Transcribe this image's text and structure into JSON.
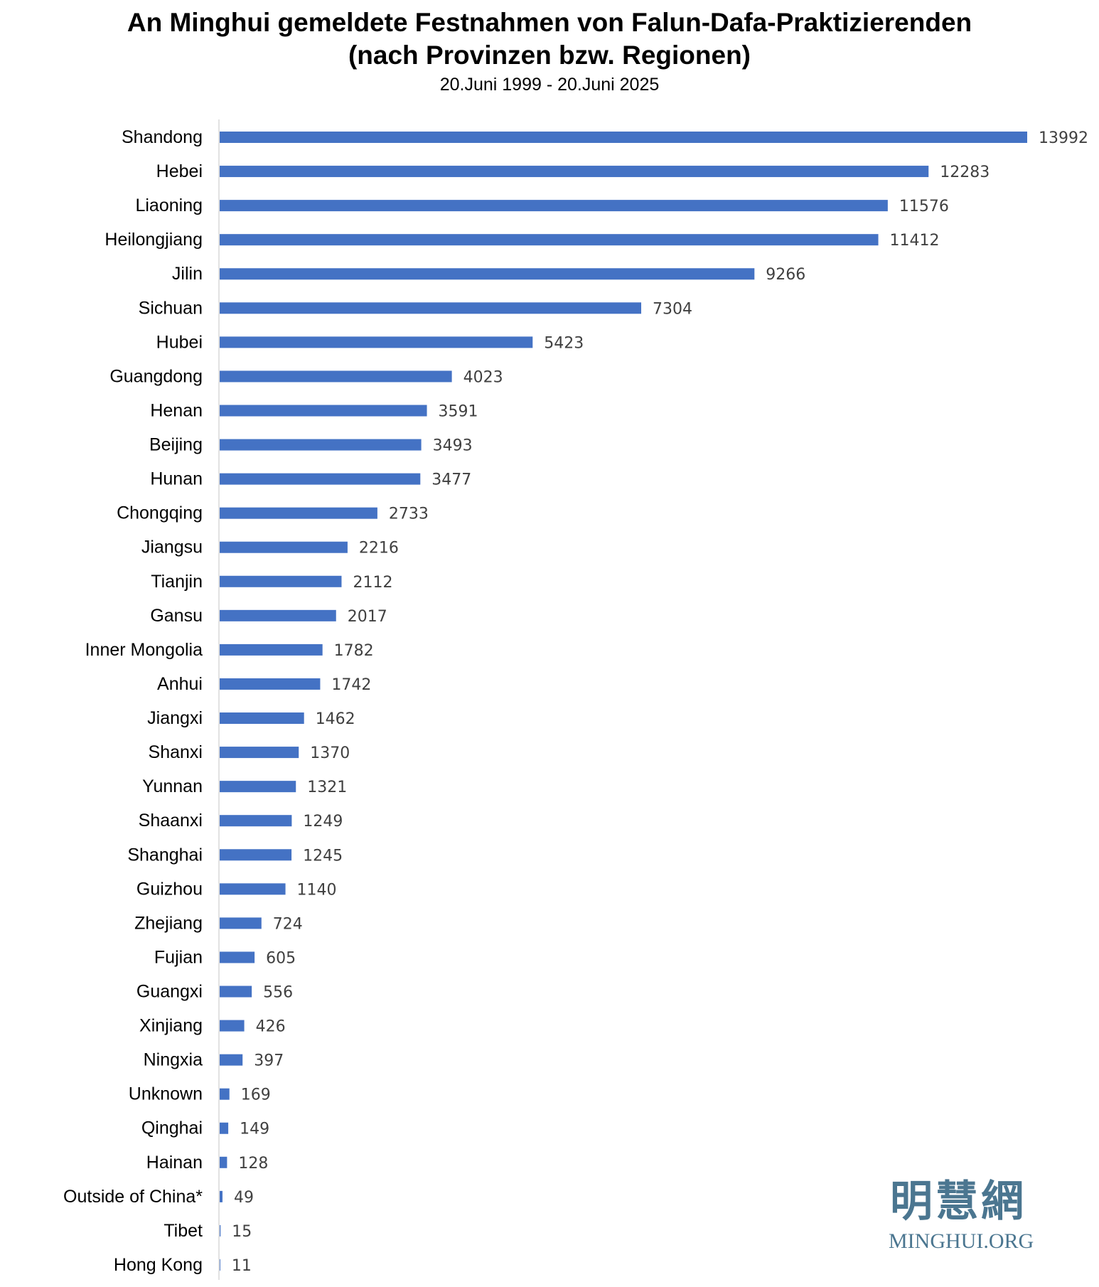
{
  "chart_data": {
    "type": "bar",
    "orientation": "horizontal",
    "title": "An Minghui gemeldete Festnahmen von Falun-Dafa-Praktizierenden",
    "title_line2": "(nach Provinzen bzw. Regionen)",
    "subtitle": "20.Juni 1999 - 20.Juni 2025",
    "categories": [
      "Shandong",
      "Hebei",
      "Liaoning",
      "Heilongjiang",
      "Jilin",
      "Sichuan",
      "Hubei",
      "Guangdong",
      "Henan",
      "Beijing",
      "Hunan",
      "Chongqing",
      "Jiangsu",
      "Tianjin",
      "Gansu",
      "Inner Mongolia",
      "Anhui",
      "Jiangxi",
      "Shanxi",
      "Yunnan",
      "Shaanxi",
      "Shanghai",
      "Guizhou",
      "Zhejiang",
      "Fujian",
      "Guangxi",
      "Xinjiang",
      "Ningxia",
      "Unknown",
      "Qinghai",
      "Hainan",
      "Outside of China*",
      "Tibet",
      "Hong Kong"
    ],
    "values": [
      13992,
      12283,
      11576,
      11412,
      9266,
      7304,
      5423,
      4023,
      3591,
      3493,
      3477,
      2733,
      2216,
      2112,
      2017,
      1782,
      1742,
      1462,
      1370,
      1321,
      1249,
      1245,
      1140,
      724,
      605,
      556,
      426,
      397,
      169,
      149,
      128,
      49,
      15,
      11
    ],
    "data_labels": true,
    "grid": false,
    "bar_color": "#4472c4",
    "xlim": [
      0,
      13992
    ]
  },
  "logo": {
    "chinese": "明慧網",
    "text": "MINGHUI.ORG",
    "color": "#4b7690"
  }
}
